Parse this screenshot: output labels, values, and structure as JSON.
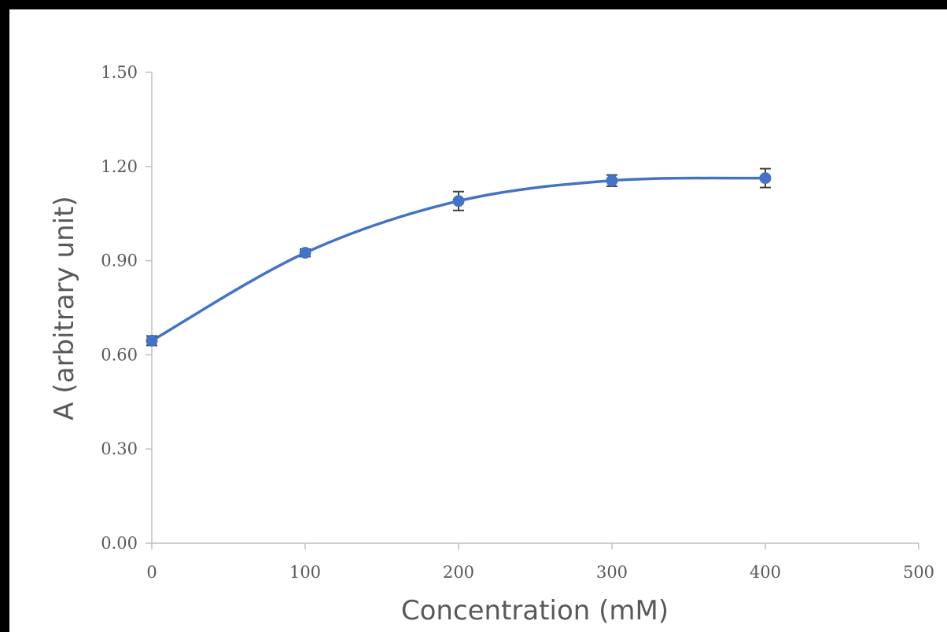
{
  "chart_data": {
    "type": "scatter",
    "xlabel": "Concentration (mM)",
    "ylabel": "A (arbitrary unit)",
    "xlim": [
      0,
      500
    ],
    "ylim": [
      0,
      1.5
    ],
    "x_ticks": [
      "0",
      "100",
      "200",
      "300",
      "400",
      "500"
    ],
    "y_ticks": [
      "0.00",
      "0.30",
      "0.60",
      "0.90",
      "1.20",
      "1.50"
    ],
    "x_tick_values": [
      0,
      100,
      200,
      300,
      400,
      500
    ],
    "y_tick_values": [
      0,
      0.3,
      0.6,
      0.9,
      1.2,
      1.5
    ],
    "grid": false,
    "smooth_line": true,
    "series": [
      {
        "color": "#4472C4",
        "x": [
          0,
          100,
          200,
          300,
          400
        ],
        "y": [
          0.645,
          0.925,
          1.09,
          1.155,
          1.163
        ],
        "error": [
          0.015,
          0.012,
          0.03,
          0.018,
          0.03
        ]
      }
    ]
  }
}
